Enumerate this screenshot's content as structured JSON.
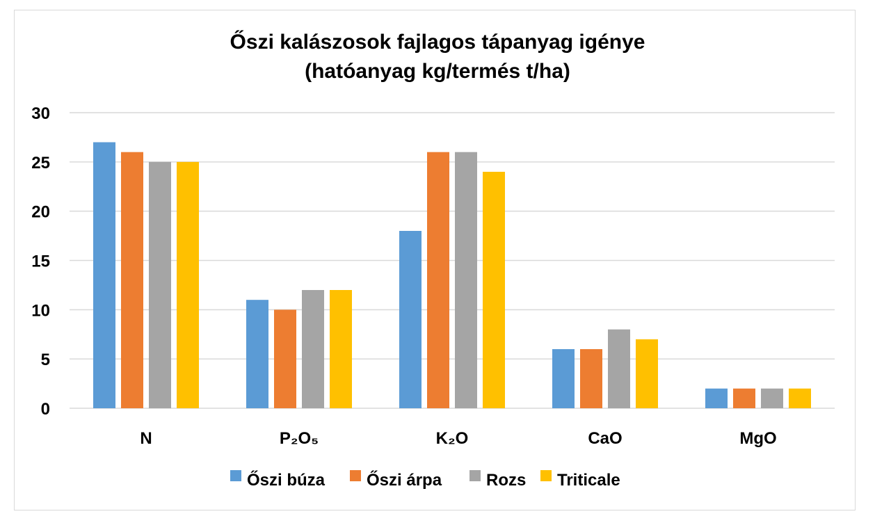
{
  "chart_data": {
    "type": "bar",
    "title": "Őszi kalászosok fajlagos tápanyag igénye",
    "subtitle": "(hatóanyag kg/termés t/ha)",
    "xlabel": "",
    "ylabel": "",
    "categories": [
      "N",
      "P₂O₅",
      "K₂O",
      "CaO",
      "MgO"
    ],
    "series": [
      {
        "name": "Őszi búza",
        "color": "#5b9bd5",
        "values": [
          27,
          11,
          18,
          6,
          2
        ]
      },
      {
        "name": "Őszi árpa",
        "color": "#ed7d31",
        "values": [
          26,
          10,
          26,
          6,
          2
        ]
      },
      {
        "name": "Rozs",
        "color": "#a5a5a5",
        "values": [
          25,
          12,
          26,
          8,
          2
        ]
      },
      {
        "name": "Triticale",
        "color": "#ffc000",
        "values": [
          25,
          12,
          24,
          7,
          2
        ]
      }
    ],
    "ylim": [
      0,
      30
    ],
    "yticks": [
      0,
      5,
      10,
      15,
      20,
      25,
      30
    ],
    "grid": true,
    "legend_position": "bottom"
  },
  "colors": {
    "gridline": "#d9d9d9",
    "border": "#d9d9d9"
  }
}
